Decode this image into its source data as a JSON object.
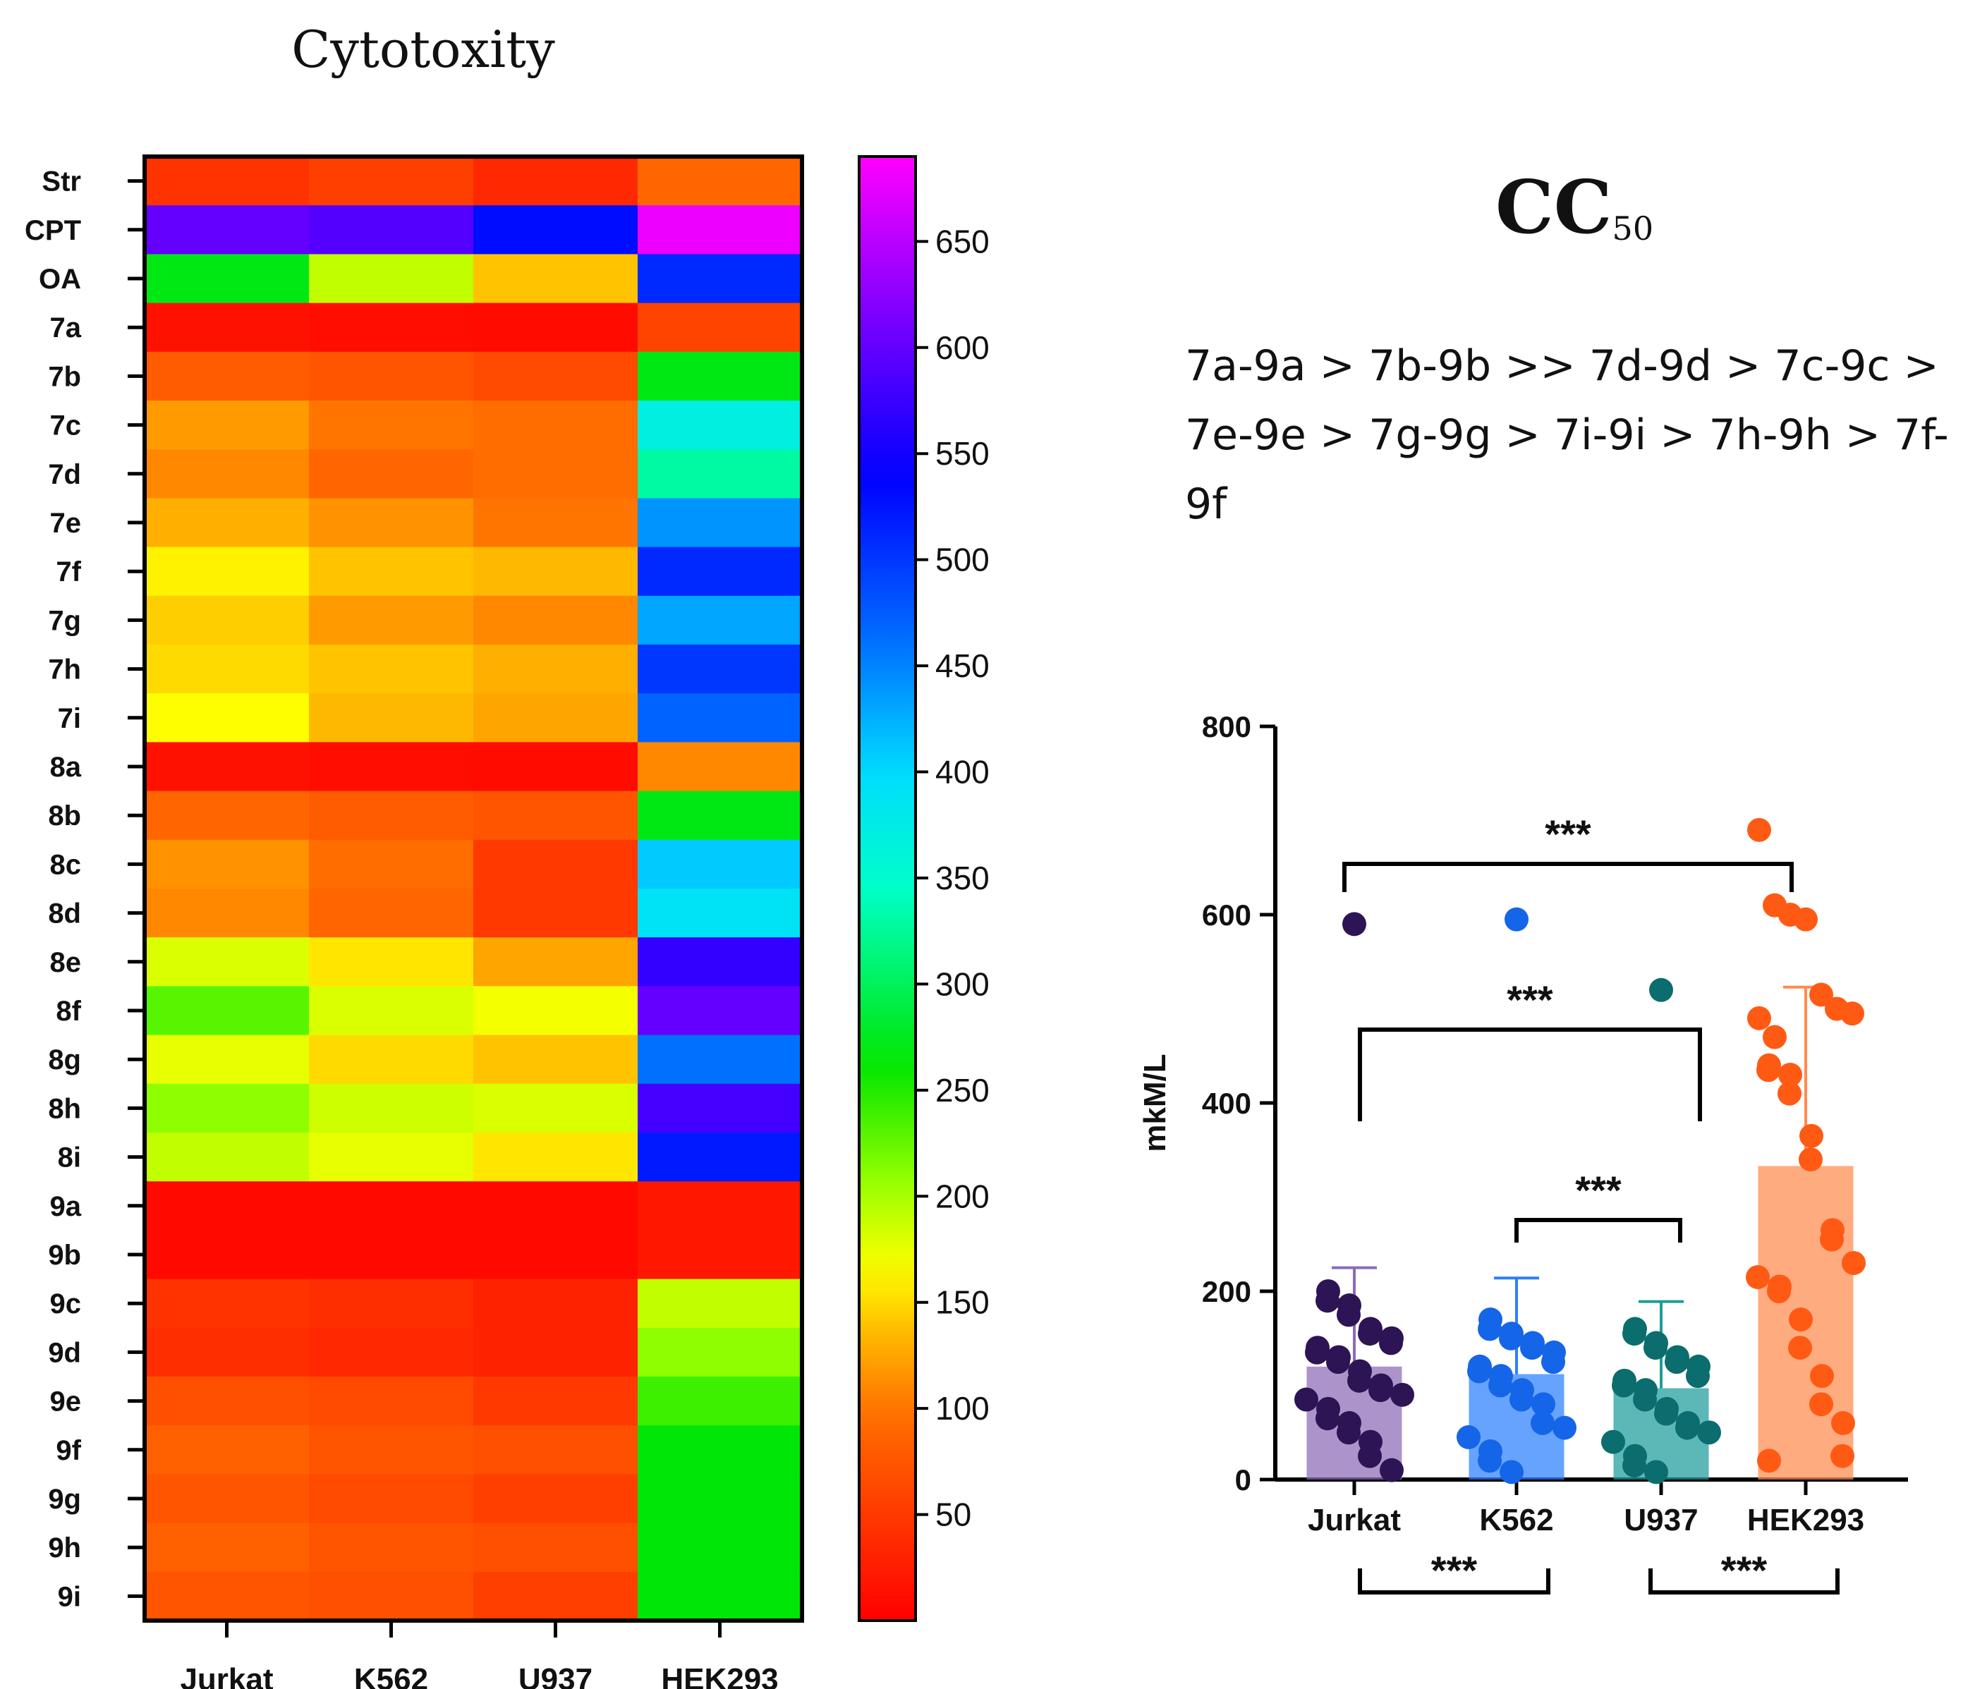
{
  "chart_data": [
    {
      "type": "heatmap",
      "title": "Cytotoxity",
      "xlabel": "",
      "ylabel": "",
      "columns": [
        "Jurkat",
        "K562",
        "U937",
        "HEK293"
      ],
      "rows": [
        "Str",
        "CPT",
        "OA",
        "7a",
        "7b",
        "7c",
        "7d",
        "7e",
        "7f",
        "7g",
        "7h",
        "7i",
        "8a",
        "8b",
        "8c",
        "8d",
        "8e",
        "8f",
        "8g",
        "8h",
        "8i",
        "9a",
        "9b",
        "9c",
        "9d",
        "9e",
        "9f",
        "9g",
        "9h",
        "9i"
      ],
      "values": [
        [
          45,
          55,
          35,
          90
        ],
        [
          600,
          590,
          530,
          680
        ],
        [
          270,
          190,
          140,
          510
        ],
        [
          15,
          12,
          10,
          60
        ],
        [
          80,
          75,
          65,
          270
        ],
        [
          120,
          100,
          95,
          370
        ],
        [
          110,
          90,
          95,
          330
        ],
        [
          130,
          115,
          100,
          440
        ],
        [
          160,
          140,
          135,
          510
        ],
        [
          145,
          120,
          110,
          430
        ],
        [
          150,
          140,
          130,
          500
        ],
        [
          165,
          135,
          125,
          470
        ],
        [
          15,
          12,
          10,
          110
        ],
        [
          90,
          80,
          75,
          270
        ],
        [
          115,
          95,
          50,
          410
        ],
        [
          110,
          90,
          50,
          390
        ],
        [
          180,
          155,
          125,
          570
        ],
        [
          230,
          180,
          170,
          600
        ],
        [
          175,
          150,
          140,
          460
        ],
        [
          210,
          185,
          180,
          580
        ],
        [
          190,
          175,
          155,
          520
        ],
        [
          8,
          8,
          8,
          20
        ],
        [
          8,
          8,
          8,
          20
        ],
        [
          45,
          40,
          30,
          190
        ],
        [
          40,
          35,
          30,
          210
        ],
        [
          70,
          65,
          50,
          240
        ],
        [
          85,
          75,
          70,
          265
        ],
        [
          75,
          65,
          55,
          265
        ],
        [
          85,
          75,
          70,
          265
        ],
        [
          75,
          70,
          55,
          265
        ]
      ],
      "colorbar_ticks": [
        50,
        100,
        150,
        200,
        250,
        300,
        350,
        400,
        450,
        500,
        550,
        600,
        650
      ],
      "colorbar_range": [
        0,
        690
      ]
    },
    {
      "type": "bar",
      "title": "CC50",
      "title_main": "CC",
      "title_sub": "50",
      "xlabel": "",
      "ylabel": "mkM/L",
      "ylim": [
        0,
        800
      ],
      "yticks": [
        0,
        200,
        400,
        600,
        800
      ],
      "categories": [
        "Jurkat",
        "K562",
        "U937",
        "HEK293"
      ],
      "values": [
        120,
        112,
        97,
        333
      ],
      "errors": [
        105,
        102,
        92,
        190
      ],
      "colors": [
        "#8c6bb5",
        "#2b7fff",
        "#1d9b9b",
        "#ff8a4f"
      ],
      "point_colors": [
        "#2d1454",
        "#1565e8",
        "#0b6d6d",
        "#ff5a14"
      ],
      "points": [
        [
          590,
          200,
          190,
          185,
          175,
          160,
          155,
          150,
          145,
          140,
          135,
          130,
          125,
          115,
          105,
          100,
          95,
          90,
          85,
          75,
          65,
          60,
          50,
          40,
          25,
          10
        ],
        [
          595,
          170,
          160,
          155,
          150,
          145,
          140,
          135,
          125,
          120,
          115,
          110,
          100,
          95,
          85,
          80,
          60,
          55,
          45,
          30,
          20,
          8
        ],
        [
          520,
          160,
          155,
          145,
          140,
          130,
          125,
          120,
          110,
          105,
          100,
          95,
          85,
          75,
          70,
          60,
          55,
          50,
          40,
          25,
          15,
          8
        ],
        [
          690,
          610,
          600,
          595,
          515,
          500,
          495,
          490,
          470,
          440,
          435,
          430,
          410,
          365,
          340,
          265,
          255,
          230,
          215,
          205,
          200,
          170,
          140,
          110,
          80,
          60,
          25,
          20
        ]
      ],
      "significance": [
        {
          "from": "Jurkat",
          "to": "HEK293",
          "label": "***",
          "position": "above"
        },
        {
          "from": "Jurkat",
          "to": "U937",
          "label": "***",
          "position": "above"
        },
        {
          "from": "K562",
          "to": "U937",
          "label": "***",
          "position": "above"
        },
        {
          "from": "Jurkat",
          "to": "K562",
          "label": "***",
          "position": "below"
        },
        {
          "from": "U937",
          "to": "HEK293",
          "label": "***",
          "position": "below"
        }
      ]
    }
  ],
  "ordering_text": "7a-9a > 7b-9b >> 7d-9d > 7c-9c > 7e-9e > 7g-9g > 7i-9i > 7h-9h > 7f-9f"
}
